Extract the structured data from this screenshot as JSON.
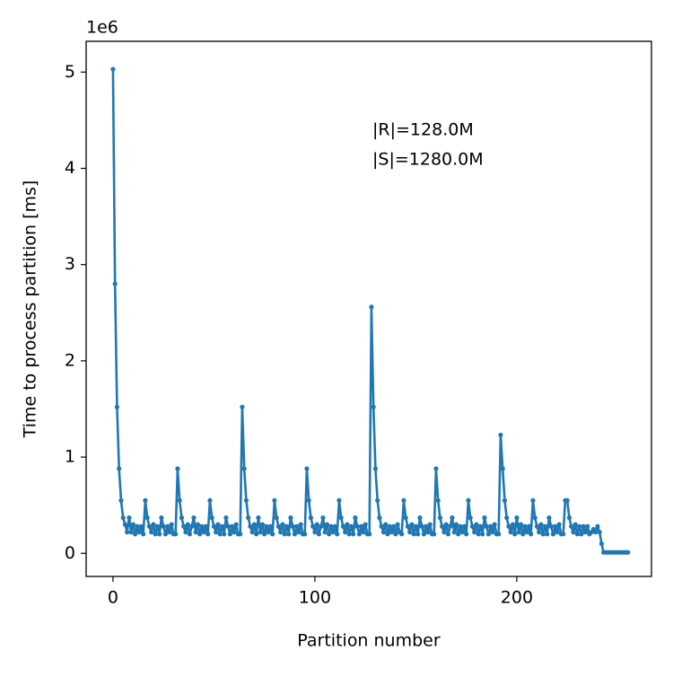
{
  "chart_data": {
    "type": "line",
    "xlabel": "Partition number",
    "ylabel": "Time to process partition [ms]",
    "y_offset_label": "1e6",
    "annotations": [
      "|R|=128.0M",
      "|S|=1280.0M"
    ],
    "xlim": [
      -13.3,
      266.7
    ],
    "xticks": [
      0,
      100,
      200
    ],
    "ylim": [
      -0.24,
      5.32
    ],
    "yticks": [
      0,
      1,
      2,
      3,
      4,
      5
    ],
    "grid": false,
    "markers": true,
    "x": [
      0,
      1,
      2,
      3,
      4,
      5,
      6,
      7,
      8,
      9,
      10,
      11,
      12,
      13,
      14,
      15,
      16,
      17,
      18,
      19,
      20,
      21,
      22,
      23,
      24,
      25,
      26,
      27,
      28,
      29,
      30,
      31,
      32,
      33,
      34,
      35,
      36,
      37,
      38,
      39,
      40,
      41,
      42,
      43,
      44,
      45,
      46,
      47,
      48,
      49,
      50,
      51,
      52,
      53,
      54,
      55,
      56,
      57,
      58,
      59,
      60,
      61,
      62,
      63,
      64,
      65,
      66,
      67,
      68,
      69,
      70,
      71,
      72,
      73,
      74,
      75,
      76,
      77,
      78,
      79,
      80,
      81,
      82,
      83,
      84,
      85,
      86,
      87,
      88,
      89,
      90,
      91,
      92,
      93,
      94,
      95,
      96,
      97,
      98,
      99,
      100,
      101,
      102,
      103,
      104,
      105,
      106,
      107,
      108,
      109,
      110,
      111,
      112,
      113,
      114,
      115,
      116,
      117,
      118,
      119,
      120,
      121,
      122,
      123,
      124,
      125,
      126,
      127,
      128,
      129,
      130,
      131,
      132,
      133,
      134,
      135,
      136,
      137,
      138,
      139,
      140,
      141,
      142,
      143,
      144,
      145,
      146,
      147,
      148,
      149,
      150,
      151,
      152,
      153,
      154,
      155,
      156,
      157,
      158,
      159,
      160,
      161,
      162,
      163,
      164,
      165,
      166,
      167,
      168,
      169,
      170,
      171,
      172,
      173,
      174,
      175,
      176,
      177,
      178,
      179,
      180,
      181,
      182,
      183,
      184,
      185,
      186,
      187,
      188,
      189,
      190,
      191,
      192,
      193,
      194,
      195,
      196,
      197,
      198,
      199,
      200,
      201,
      202,
      203,
      204,
      205,
      206,
      207,
      208,
      209,
      210,
      211,
      212,
      213,
      214,
      215,
      216,
      217,
      218,
      219,
      220,
      221,
      222,
      223,
      224,
      225,
      226,
      227,
      228,
      229,
      230,
      231,
      232,
      233,
      234,
      235,
      236,
      237,
      238,
      239,
      240,
      241,
      242,
      243,
      244,
      245,
      246,
      247,
      248,
      249,
      250,
      251,
      252,
      253,
      254,
      255
    ],
    "series": [
      {
        "name": "partition time",
        "color": "#1f77b4",
        "values": [
          5.03,
          2.8,
          1.52,
          0.88,
          0.55,
          0.37,
          0.3,
          0.22,
          0.37,
          0.22,
          0.3,
          0.2,
          0.28,
          0.22,
          0.28,
          0.2,
          0.55,
          0.37,
          0.28,
          0.22,
          0.3,
          0.2,
          0.28,
          0.2,
          0.37,
          0.28,
          0.2,
          0.28,
          0.22,
          0.3,
          0.2,
          0.2,
          0.88,
          0.55,
          0.37,
          0.28,
          0.22,
          0.3,
          0.2,
          0.28,
          0.37,
          0.22,
          0.3,
          0.2,
          0.28,
          0.22,
          0.28,
          0.2,
          0.55,
          0.37,
          0.28,
          0.22,
          0.3,
          0.2,
          0.28,
          0.2,
          0.37,
          0.28,
          0.2,
          0.28,
          0.22,
          0.3,
          0.2,
          0.2,
          1.52,
          0.88,
          0.55,
          0.37,
          0.28,
          0.22,
          0.3,
          0.2,
          0.37,
          0.22,
          0.3,
          0.2,
          0.28,
          0.22,
          0.28,
          0.2,
          0.55,
          0.37,
          0.28,
          0.22,
          0.3,
          0.2,
          0.28,
          0.2,
          0.37,
          0.28,
          0.2,
          0.28,
          0.22,
          0.3,
          0.2,
          0.2,
          0.88,
          0.55,
          0.37,
          0.28,
          0.22,
          0.3,
          0.2,
          0.28,
          0.37,
          0.22,
          0.3,
          0.2,
          0.28,
          0.22,
          0.28,
          0.2,
          0.55,
          0.37,
          0.28,
          0.22,
          0.3,
          0.2,
          0.28,
          0.2,
          0.37,
          0.28,
          0.2,
          0.28,
          0.22,
          0.3,
          0.2,
          0.2,
          2.56,
          1.52,
          0.88,
          0.55,
          0.37,
          0.28,
          0.22,
          0.3,
          0.2,
          0.28,
          0.22,
          0.28,
          0.2,
          0.3,
          0.22,
          0.2,
          0.55,
          0.37,
          0.28,
          0.22,
          0.3,
          0.2,
          0.28,
          0.2,
          0.37,
          0.28,
          0.2,
          0.28,
          0.22,
          0.3,
          0.2,
          0.2,
          0.88,
          0.55,
          0.37,
          0.28,
          0.22,
          0.3,
          0.2,
          0.28,
          0.37,
          0.22,
          0.3,
          0.2,
          0.28,
          0.22,
          0.28,
          0.2,
          0.55,
          0.37,
          0.28,
          0.22,
          0.3,
          0.2,
          0.28,
          0.2,
          0.37,
          0.28,
          0.2,
          0.28,
          0.22,
          0.3,
          0.2,
          0.2,
          1.23,
          0.88,
          0.55,
          0.37,
          0.28,
          0.22,
          0.3,
          0.2,
          0.37,
          0.22,
          0.3,
          0.2,
          0.28,
          0.22,
          0.28,
          0.2,
          0.55,
          0.37,
          0.28,
          0.22,
          0.3,
          0.2,
          0.28,
          0.2,
          0.37,
          0.28,
          0.2,
          0.28,
          0.22,
          0.3,
          0.2,
          0.2,
          0.55,
          0.55,
          0.37,
          0.28,
          0.22,
          0.3,
          0.2,
          0.28,
          0.2,
          0.28,
          0.22,
          0.28,
          0.2,
          0.22,
          0.25,
          0.22,
          0.28,
          0.22,
          0.1,
          0.01,
          0.01,
          0.01,
          0.01,
          0.01,
          0.01,
          0.01,
          0.01,
          0.01,
          0.01,
          0.01,
          0.01,
          0.01
        ]
      }
    ]
  }
}
